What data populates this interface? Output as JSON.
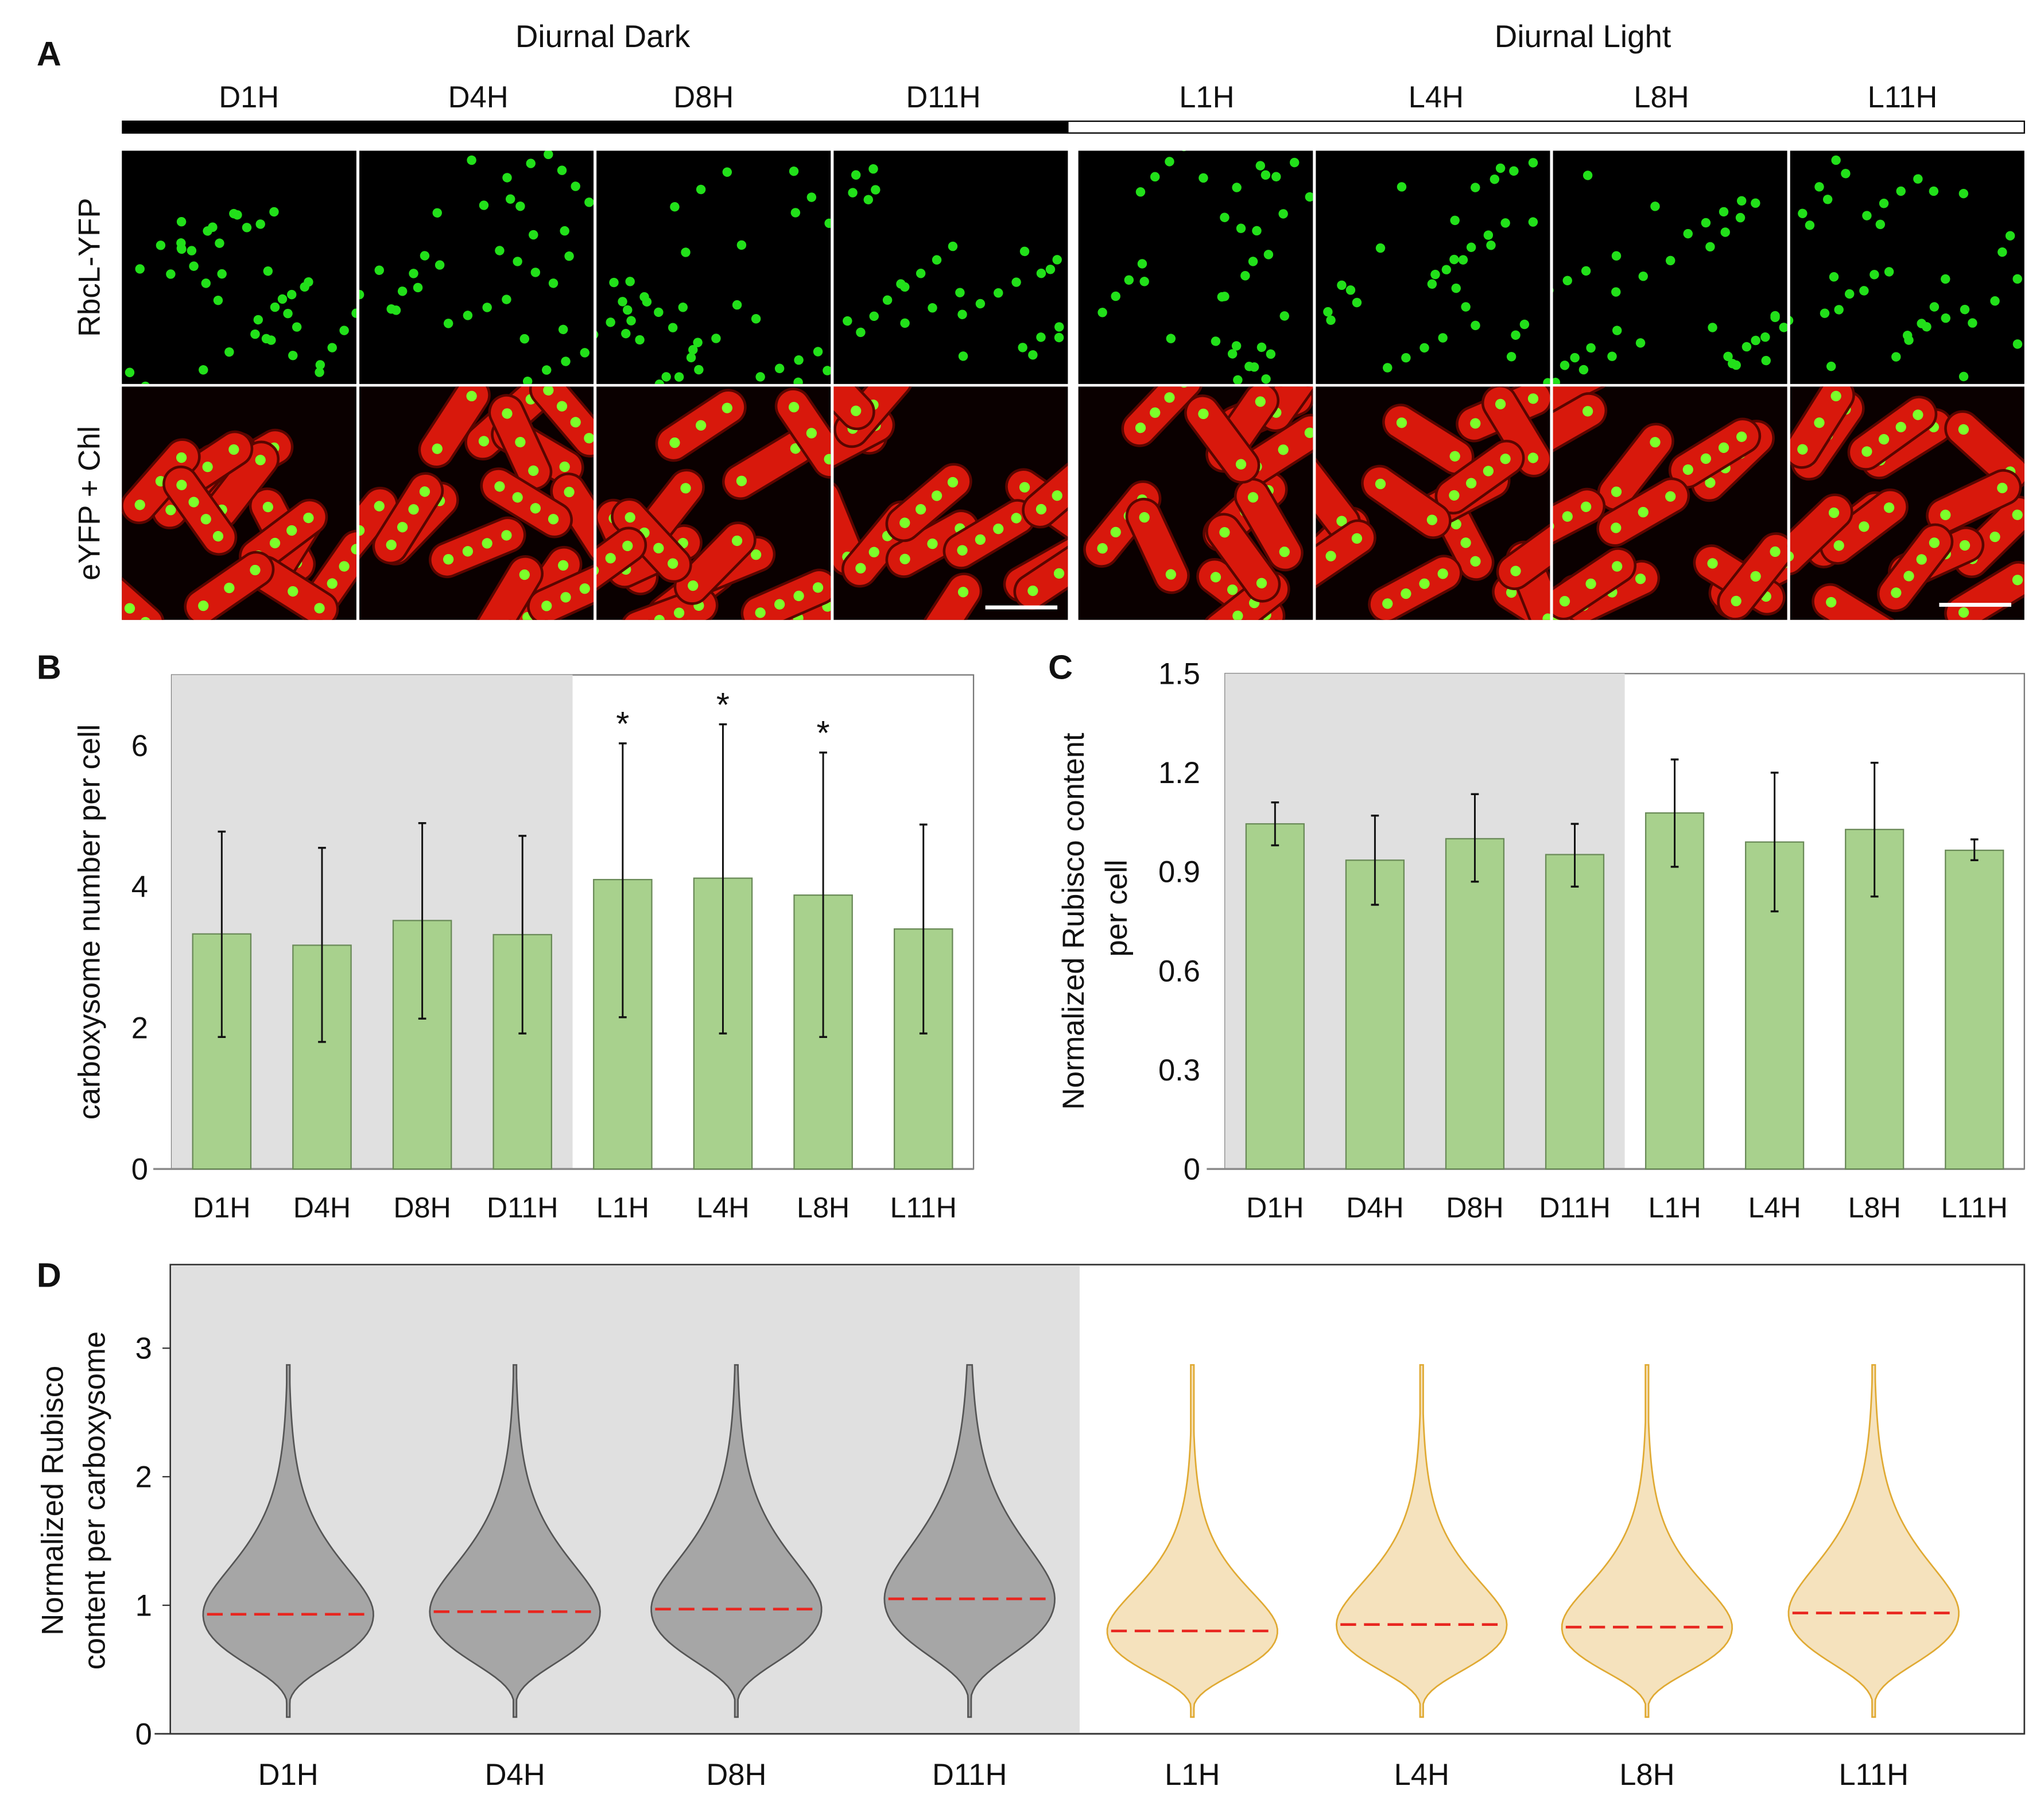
{
  "panel_labels": {
    "a": "A",
    "b": "B",
    "c": "C",
    "d": "D"
  },
  "panel_a": {
    "group_dark": "Diurnal Dark",
    "group_light": "Diurnal Light",
    "columns": [
      "D1H",
      "D4H",
      "D8H",
      "D11H",
      "L1H",
      "L4H",
      "L8H",
      "L11H"
    ],
    "rows": [
      "RbcL-YFP",
      "eYFP + Chl"
    ]
  },
  "colors": {
    "bar": "#a8d18d",
    "shade": "#e0e0e0",
    "dark_violin": "#a6a6a6",
    "light_violin": "#f5e2bd",
    "light_violin_edge": "#e0aa33",
    "median": "#e8261f"
  },
  "chart_data": [
    {
      "type": "bar",
      "panel": "B",
      "categories": [
        "D1H",
        "D4H",
        "D8H",
        "D11H",
        "L1H",
        "L4H",
        "L8H",
        "L11H"
      ],
      "values": [
        3.33,
        3.17,
        3.52,
        3.32,
        4.1,
        4.12,
        3.88,
        3.4
      ],
      "err_low": [
        1.87,
        1.8,
        2.13,
        1.92,
        2.15,
        1.92,
        1.87,
        1.92
      ],
      "err_high": [
        4.78,
        4.55,
        4.9,
        4.72,
        6.03,
        6.3,
        5.9,
        4.88
      ],
      "annotations": [
        "",
        "",
        "",
        "",
        "*",
        "*",
        "*",
        ""
      ],
      "ylabel": "carboxysome number per cell",
      "ylim": [
        0,
        7
      ],
      "yticks": [
        "0",
        "2",
        "4",
        "6"
      ],
      "shaded_categories": [
        "D1H",
        "D4H",
        "D8H",
        "D11H"
      ]
    },
    {
      "type": "bar",
      "panel": "C",
      "categories": [
        "D1H",
        "D4H",
        "D8H",
        "D11H",
        "L1H",
        "L4H",
        "L8H",
        "L11H"
      ],
      "values": [
        1.045,
        0.935,
        1.0,
        0.952,
        1.078,
        0.99,
        1.028,
        0.965
      ],
      "err_low": [
        0.98,
        0.8,
        0.87,
        0.855,
        0.915,
        0.78,
        0.825,
        0.935
      ],
      "err_high": [
        1.11,
        1.07,
        1.135,
        1.045,
        1.24,
        1.2,
        1.23,
        0.998
      ],
      "ylabel": "Normalized Rubisco content",
      "ylabel2": "per cell",
      "ylim": [
        0,
        1.5
      ],
      "yticks": [
        "0",
        "0.3",
        "0.6",
        "0.9",
        "1.2",
        "1.5"
      ],
      "shaded_categories": [
        "D1H",
        "D4H",
        "D8H",
        "D11H"
      ]
    },
    {
      "type": "violin",
      "panel": "D",
      "categories": [
        "D1H",
        "D4H",
        "D8H",
        "D11H",
        "L1H",
        "L4H",
        "L8H",
        "L11H"
      ],
      "medians": [
        0.93,
        0.95,
        0.97,
        1.05,
        0.8,
        0.85,
        0.83,
        0.94
      ],
      "min": [
        0.13,
        0.13,
        0.13,
        0.13,
        0.13,
        0.13,
        0.13,
        0.13
      ],
      "max": [
        2.87,
        2.87,
        2.87,
        2.87,
        2.87,
        2.87,
        2.87,
        2.87
      ],
      "ylabel": "Normalized Rubisco",
      "ylabel2": "content per carboxysome",
      "ylim": [
        0,
        3.65
      ],
      "yticks": [
        "0",
        "1",
        "2",
        "3"
      ]
    }
  ]
}
